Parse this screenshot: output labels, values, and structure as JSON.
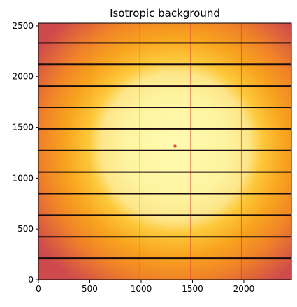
{
  "chart_data": {
    "type": "heatmap",
    "title": "Isotropic background",
    "xlabel": "",
    "ylabel": "",
    "xlim": [
      0,
      2463
    ],
    "ylim": [
      0,
      2527
    ],
    "x_ticks": [
      0,
      500,
      1000,
      1500,
      2000
    ],
    "y_ticks": [
      0,
      500,
      1000,
      1500,
      2000,
      2500
    ],
    "x_tick_labels": [
      "0",
      "500",
      "1000",
      "1500",
      "2000"
    ],
    "y_tick_labels": [
      "0",
      "500",
      "1000",
      "1500",
      "2000",
      "2500"
    ],
    "grid": false,
    "colormap": "inferno-like (warm yellow center to red edges)",
    "field": {
      "description_center": [
        1330,
        1310
      ],
      "ring_radius": 650,
      "peak_color": "#fdffb4",
      "mid_color": "#fcb224",
      "edge_color": "#d0504a"
    },
    "beam_center": [
      1330,
      1315
    ],
    "module_gaps_horizontal": [
      212,
      424,
      636,
      848,
      1060,
      1272,
      1484,
      1696,
      1908,
      2120,
      2332
    ],
    "module_gaps_vertical": [
      494,
      988,
      1482,
      1976
    ]
  }
}
